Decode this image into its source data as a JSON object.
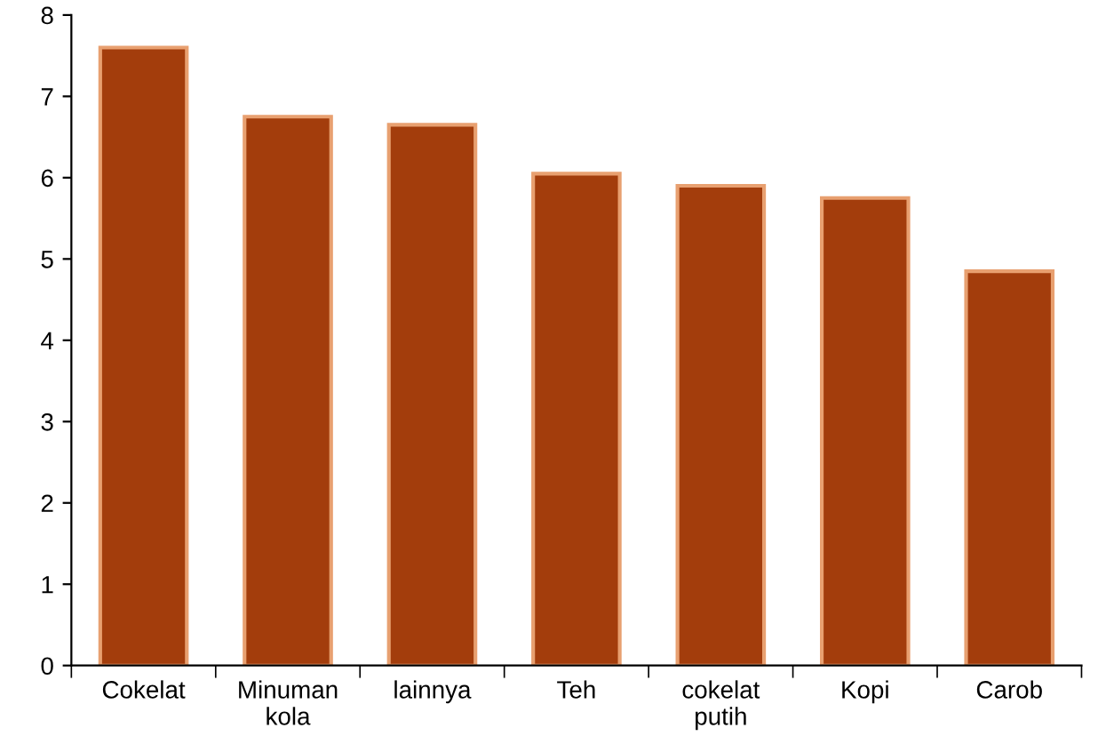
{
  "chart_data": {
    "type": "bar",
    "categories": [
      "Cokelat",
      "Minuman\nkola",
      "lainnya",
      "Teh",
      "cokelat\nputih",
      "Kopi",
      "Carob"
    ],
    "values": [
      7.6,
      6.75,
      6.65,
      6.05,
      5.9,
      5.75,
      4.85
    ],
    "color": "#a33d0c",
    "ylim": [
      0,
      8
    ],
    "yticks": [
      0,
      1,
      2,
      3,
      4,
      5,
      6,
      7,
      8
    ],
    "grid": false
  }
}
